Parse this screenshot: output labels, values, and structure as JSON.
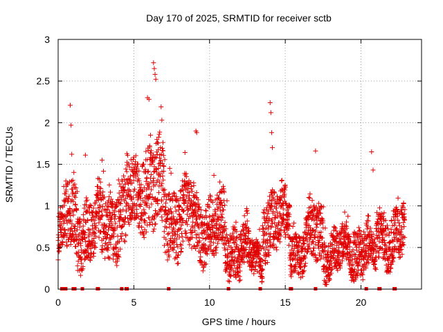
{
  "chart_data": {
    "type": "scatter",
    "title": "Day 170 of 2025, SRMTID for receiver sctb",
    "xlabel": "GPS time / hours",
    "ylabel": "SRMTID / TECUs",
    "xlim": [
      0,
      24
    ],
    "ylim": [
      0,
      3
    ],
    "xticks": [
      0,
      5,
      10,
      15,
      20
    ],
    "yticks": [
      0,
      0.5,
      1,
      1.5,
      2,
      2.5,
      3
    ],
    "xtick_labels": [
      "0",
      "5",
      "10",
      "15",
      "20"
    ],
    "ytick_labels": [
      "0",
      "0.5",
      "1",
      "1.5",
      "2",
      "2.5",
      "3"
    ],
    "grid": true,
    "marker": "+",
    "color": "#e00000",
    "segments": [
      {
        "start": 0.0,
        "end": 0.35,
        "base": 0.6,
        "spread": 0.25
      },
      {
        "start": 0.35,
        "end": 1.2,
        "base": 0.85,
        "spread": 0.4
      },
      {
        "start": 1.2,
        "end": 2.5,
        "base": 0.7,
        "spread": 0.35
      },
      {
        "start": 2.5,
        "end": 4.5,
        "base": 0.8,
        "spread": 0.4
      },
      {
        "start": 4.5,
        "end": 5.5,
        "base": 1.15,
        "spread": 0.4
      },
      {
        "start": 5.5,
        "end": 7.0,
        "base": 1.2,
        "spread": 0.5
      },
      {
        "start": 7.0,
        "end": 9.0,
        "base": 0.85,
        "spread": 0.4
      },
      {
        "start": 9.0,
        "end": 11.0,
        "base": 0.75,
        "spread": 0.35
      },
      {
        "start": 11.0,
        "end": 12.5,
        "base": 0.5,
        "spread": 0.3
      },
      {
        "start": 12.5,
        "end": 13.5,
        "base": 0.35,
        "spread": 0.2
      },
      {
        "start": 13.5,
        "end": 15.3,
        "base": 0.8,
        "spread": 0.35
      },
      {
        "start": 15.3,
        "end": 16.5,
        "base": 0.5,
        "spread": 0.25
      },
      {
        "start": 16.5,
        "end": 17.5,
        "base": 0.65,
        "spread": 0.35
      },
      {
        "start": 17.5,
        "end": 19.5,
        "base": 0.45,
        "spread": 0.25
      },
      {
        "start": 19.5,
        "end": 20.5,
        "base": 0.5,
        "spread": 0.3
      },
      {
        "start": 20.5,
        "end": 21.0,
        "base": 0.35,
        "spread": 0.2
      },
      {
        "start": 21.0,
        "end": 22.9,
        "base": 0.65,
        "spread": 0.3
      }
    ],
    "sample_step_hours": 0.008,
    "highlights": [
      {
        "x": 0.8,
        "y": 2.21
      },
      {
        "x": 0.85,
        "y": 1.97
      },
      {
        "x": 0.9,
        "y": 1.62
      },
      {
        "x": 5.9,
        "y": 2.3
      },
      {
        "x": 6.0,
        "y": 2.28
      },
      {
        "x": 6.3,
        "y": 2.72
      },
      {
        "x": 6.35,
        "y": 2.65
      },
      {
        "x": 6.4,
        "y": 2.58
      },
      {
        "x": 6.45,
        "y": 2.52
      },
      {
        "x": 6.8,
        "y": 2.19
      },
      {
        "x": 6.85,
        "y": 2.03
      },
      {
        "x": 6.1,
        "y": 1.85
      },
      {
        "x": 9.1,
        "y": 1.9
      },
      {
        "x": 9.15,
        "y": 1.88
      },
      {
        "x": 14.0,
        "y": 2.24
      },
      {
        "x": 14.05,
        "y": 2.12
      },
      {
        "x": 14.1,
        "y": 1.88
      },
      {
        "x": 14.15,
        "y": 1.7
      },
      {
        "x": 17.0,
        "y": 1.66
      },
      {
        "x": 20.7,
        "y": 1.65
      },
      {
        "x": 20.8,
        "y": 1.43
      },
      {
        "x": 1.8,
        "y": 1.61
      },
      {
        "x": 2.9,
        "y": 1.55
      }
    ],
    "zero_points": [
      0.25,
      0.3,
      0.5,
      1.0,
      1.1,
      1.6,
      2.6,
      2.65,
      4.2,
      4.5,
      4.55,
      7.3,
      11.25,
      13.35,
      15.35,
      15.4,
      17.0,
      20.35,
      21.2,
      21.25,
      22.2,
      22.25
    ]
  }
}
